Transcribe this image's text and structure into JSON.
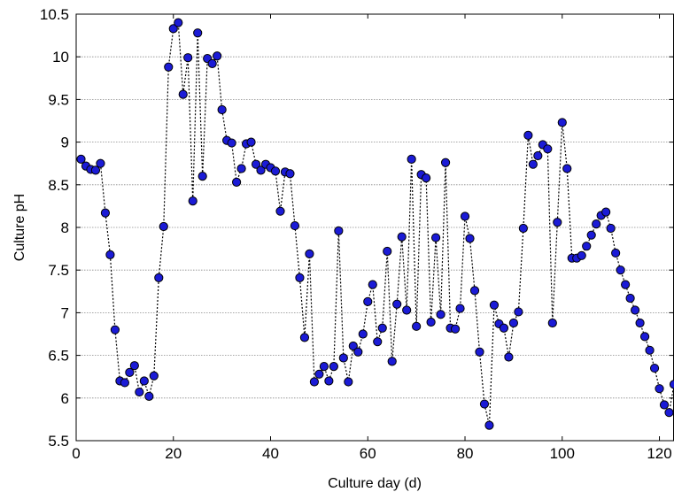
{
  "chart_data": {
    "type": "line",
    "xlabel": "Culture day (d)",
    "ylabel": "Culture pH",
    "xlim": [
      0,
      123
    ],
    "ylim": [
      5.5,
      10.5
    ],
    "xticks": [
      0,
      20,
      40,
      60,
      80,
      100,
      120
    ],
    "yticks": [
      5.5,
      6,
      6.5,
      7,
      7.5,
      8,
      8.5,
      9,
      9.5,
      10,
      10.5
    ],
    "xtick_labels": [
      "0",
      "20",
      "40",
      "60",
      "80",
      "100",
      "120"
    ],
    "ytick_labels": [
      "5.5",
      "6",
      "6.5",
      "7",
      "7.5",
      "8",
      "8.5",
      "9",
      "9.5",
      "10",
      "10.5"
    ],
    "grid": "horizontal dotted",
    "line_style": "dotted black",
    "marker": "circle",
    "marker_color": "#1b1bd6",
    "marker_edge_color": "#000000",
    "series": [
      {
        "x": [
          1,
          2,
          3,
          4,
          5,
          6,
          7,
          8,
          9,
          10,
          11,
          12,
          13,
          14,
          15,
          16,
          17,
          18,
          19,
          20,
          21,
          22,
          23,
          24,
          25,
          26,
          27,
          28,
          29,
          30,
          31,
          32,
          33,
          34,
          35,
          36,
          37,
          38,
          39,
          40,
          41,
          42,
          43,
          44,
          45,
          46,
          47,
          48,
          49,
          50,
          51,
          52,
          53,
          54,
          55,
          56,
          57,
          58,
          59,
          60,
          61,
          62,
          63,
          64,
          65,
          66,
          67,
          68,
          69,
          70,
          71,
          72,
          73,
          74,
          75,
          76,
          77,
          78,
          79,
          80,
          81,
          82,
          83,
          84,
          85,
          86,
          87,
          88,
          89,
          90,
          91,
          92,
          93,
          94,
          95,
          96,
          97,
          98,
          99,
          100,
          101,
          102,
          103,
          104,
          105,
          106,
          107,
          108,
          109,
          110,
          111,
          112,
          113,
          114,
          115,
          116,
          117,
          118,
          119,
          120,
          121,
          122,
          123
        ],
        "y": [
          8.8,
          8.72,
          8.68,
          8.67,
          8.75,
          8.17,
          7.68,
          6.8,
          6.2,
          6.18,
          6.3,
          6.38,
          6.07,
          6.2,
          6.02,
          6.26,
          7.41,
          8.01,
          9.88,
          10.33,
          10.4,
          9.56,
          9.99,
          8.31,
          10.28,
          8.6,
          9.98,
          9.92,
          10.01,
          9.38,
          9.02,
          8.99,
          8.53,
          8.69,
          8.98,
          9.0,
          8.74,
          8.67,
          8.74,
          8.7,
          8.66,
          8.19,
          8.65,
          8.63,
          8.02,
          7.41,
          6.71,
          7.69,
          6.19,
          6.28,
          6.37,
          6.2,
          6.37,
          7.96,
          6.47,
          6.19,
          6.61,
          6.54,
          6.75,
          7.13,
          7.33,
          6.66,
          6.82,
          7.72,
          6.43,
          7.1,
          7.89,
          7.03,
          8.8,
          6.84,
          8.62,
          8.58,
          6.89,
          7.88,
          6.98,
          8.76,
          6.82,
          6.81,
          7.05,
          8.13,
          7.87,
          7.26,
          6.54,
          5.93,
          5.68,
          7.09,
          6.87,
          6.82,
          6.48,
          6.88,
          7.01,
          7.99,
          9.08,
          8.74,
          8.84,
          8.97,
          8.92,
          6.88,
          8.06,
          9.23,
          8.69,
          7.64,
          7.64,
          7.67,
          7.78,
          7.91,
          8.04,
          8.14,
          8.18,
          7.99,
          7.7,
          7.5,
          7.33,
          7.17,
          7.03,
          6.88,
          6.72,
          6.56,
          6.35,
          6.11,
          5.92,
          5.83,
          6.16
        ]
      }
    ]
  }
}
